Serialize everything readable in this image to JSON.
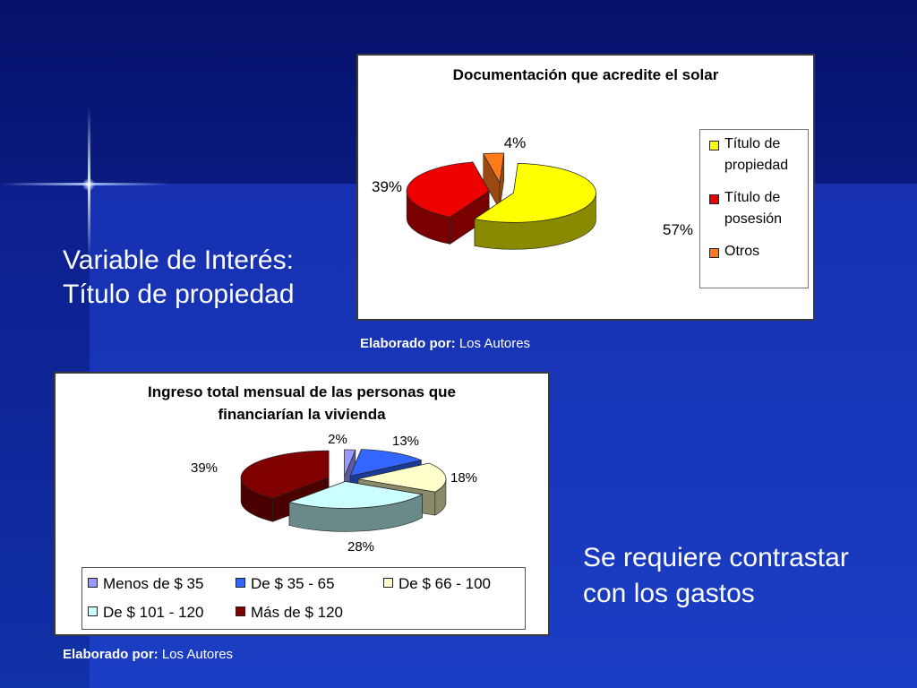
{
  "slide": {
    "left_text_line1": "Variable de Interés:",
    "left_text_line2": "Título de propiedad",
    "right_text_line1": "Se requiere contrastar",
    "right_text_line2": "con los gastos",
    "caption1_bold": "Elaborado por:",
    "caption1_rest": " Los Autores",
    "caption2_bold": "Elaborado por:",
    "caption2_rest": " Los Autores"
  },
  "chart_data": [
    {
      "type": "pie",
      "title": "Documentación que acredite el solar",
      "categories": [
        "Título de propiedad",
        "Título de posesión",
        "Otros"
      ],
      "legend_lines": [
        [
          "Título de",
          "propiedad"
        ],
        [
          "Título de",
          "posesión"
        ],
        [
          "Otros"
        ]
      ],
      "values": [
        57,
        39,
        4
      ],
      "labels": [
        "57%",
        "39%",
        "4%"
      ],
      "colors": [
        "#ffff00",
        "#ee0000",
        "#ff7a1a"
      ],
      "side_colors": [
        "#8a8a00",
        "#7a0000",
        "#9a4a10"
      ],
      "legend_position": "right"
    },
    {
      "type": "pie",
      "title_line1": "Ingreso total mensual de las personas que",
      "title_line2": "financiarían la vivienda",
      "categories": [
        "Menos de $ 35",
        "De $ 35 - 65",
        "De $ 66 - 100",
        "De $ 101 - 120",
        "Más de $ 120"
      ],
      "values": [
        2,
        13,
        18,
        28,
        39
      ],
      "labels": [
        "2%",
        "13%",
        "18%",
        "28%",
        "39%"
      ],
      "colors": [
        "#9999ff",
        "#3366ff",
        "#ffffcc",
        "#ccffff",
        "#800000"
      ],
      "side_colors": [
        "#5a5aa0",
        "#1a3a9a",
        "#8a8a6a",
        "#6a8a8a",
        "#4a0000"
      ],
      "legend_position": "bottom"
    }
  ]
}
